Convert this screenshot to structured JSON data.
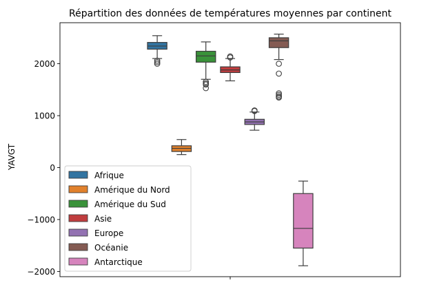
{
  "chart_data": {
    "type": "box",
    "title": "Répartition des données de températures moyennes par continent",
    "xlabel": "",
    "ylabel": "YAVGT",
    "ylim": [
      -2100,
      2700
    ],
    "yticks": [
      -2000,
      -1000,
      0,
      1000,
      2000
    ],
    "ytick_labels": [
      "−2000",
      "−1000",
      "0",
      "1000",
      "2000"
    ],
    "grid": false,
    "legend_position": "lower-left",
    "series": [
      {
        "name": "Afrique",
        "color": "#3274a1",
        "stats": {
          "whisker_low": 2100,
          "q1": 2280,
          "median": 2340,
          "q3": 2410,
          "whisker_high": 2540
        },
        "outliers": [
          2060,
          2030,
          2000
        ]
      },
      {
        "name": "Amérique du Nord",
        "color": "#e1812c",
        "stats": {
          "whisker_low": 250,
          "q1": 310,
          "median": 370,
          "q3": 420,
          "whisker_high": 540
        },
        "outliers": []
      },
      {
        "name": "Amérique du Sud",
        "color": "#3a923a",
        "stats": {
          "whisker_low": 1700,
          "q1": 2030,
          "median": 2150,
          "q3": 2240,
          "whisker_high": 2420
        },
        "outliers": [
          1650,
          1620,
          1600,
          1530
        ]
      },
      {
        "name": "Asie",
        "color": "#c03d3e",
        "stats": {
          "whisker_low": 1670,
          "q1": 1830,
          "median": 1880,
          "q3": 1940,
          "whisker_high": 2100
        },
        "outliers": [
          2120,
          2140
        ]
      },
      {
        "name": "Europe",
        "color": "#9372b2",
        "stats": {
          "whisker_low": 720,
          "q1": 830,
          "median": 880,
          "q3": 930,
          "whisker_high": 1070
        },
        "outliers": [
          1090,
          1100
        ]
      },
      {
        "name": "Océanie",
        "color": "#845b53",
        "stats": {
          "whisker_low": 2080,
          "q1": 2310,
          "median": 2440,
          "q3": 2500,
          "whisker_high": 2570
        },
        "outliers": [
          2000,
          1810,
          1430,
          1400,
          1370,
          1350
        ]
      },
      {
        "name": "Antarctique",
        "color": "#d684bd",
        "stats": {
          "whisker_low": -1890,
          "q1": -1550,
          "median": -1170,
          "q3": -500,
          "whisker_high": -260
        },
        "outliers": []
      }
    ]
  }
}
